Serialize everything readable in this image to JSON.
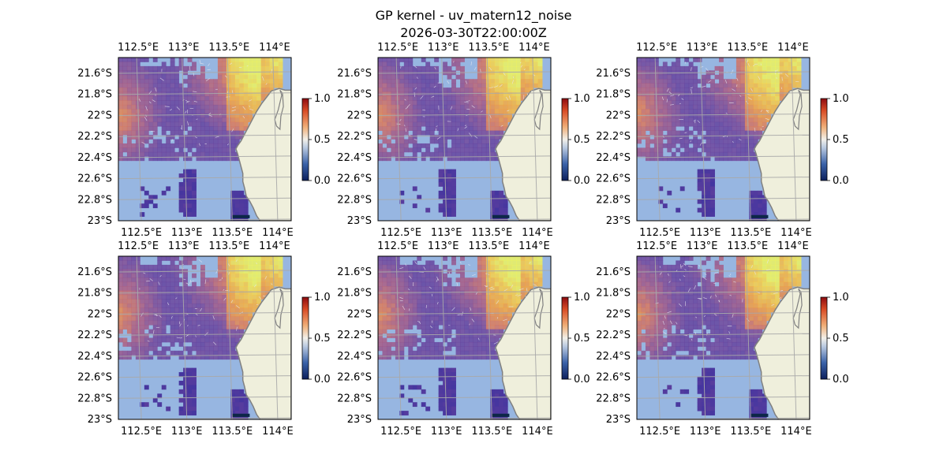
{
  "figure": {
    "title_line1": "GP kernel - uv_matern12_noise",
    "title_line2": "2026-03-30T22:00:00Z"
  },
  "chart_data": {
    "type": "heatmap",
    "layout": "2 rows x 3 columns of map panels",
    "map_extent": {
      "lon": [
        112.3,
        114.2
      ],
      "lat": [
        -23.0,
        -21.45
      ]
    },
    "x_ticks": [
      "112.5°E",
      "113°E",
      "113.5°E",
      "114°E"
    ],
    "x_tick_values": [
      112.5,
      113.0,
      113.5,
      114.0
    ],
    "y_ticks": [
      "21.6°S",
      "21.8°S",
      "22°S",
      "22.2°S",
      "22.4°S",
      "22.6°S",
      "22.8°S",
      "23°S"
    ],
    "y_tick_values": [
      -21.6,
      -21.8,
      -22.0,
      -22.2,
      -22.4,
      -22.6,
      -22.8,
      -23.0
    ],
    "colorbar": {
      "range": [
        0.0,
        1.0
      ],
      "ticks": [
        "0.0",
        "0.5",
        "1.0"
      ],
      "tick_values": [
        0.0,
        0.5,
        1.0
      ]
    },
    "colors": {
      "ocean": "#97b6e1",
      "land": "#efefdc",
      "coast": "#808080",
      "grid": "#a8a8a8"
    },
    "panels": [
      {
        "name": "panel-1",
        "seed": 11
      },
      {
        "name": "panel-2",
        "seed": 23
      },
      {
        "name": "panel-3",
        "seed": 37
      },
      {
        "name": "panel-4",
        "seed": 41
      },
      {
        "name": "panel-5",
        "seed": 53
      },
      {
        "name": "panel-6",
        "seed": 67
      }
    ]
  }
}
